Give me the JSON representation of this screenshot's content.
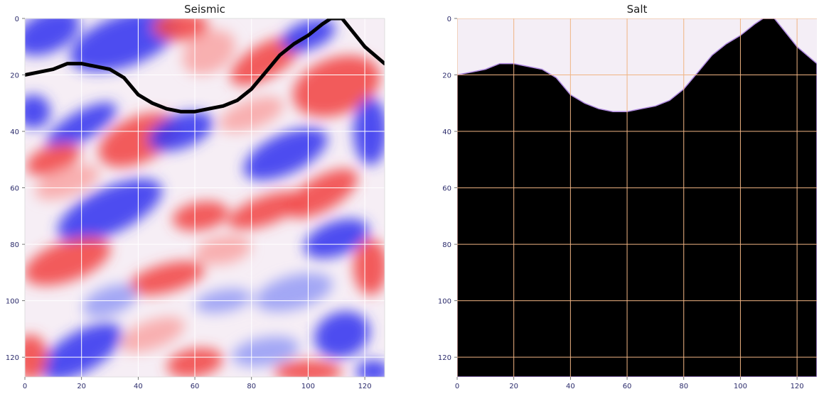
{
  "chart_data": [
    {
      "type": "heatmap",
      "title": "Seismic",
      "colormap": "seismic (blue-white-red)",
      "xlim": [
        0,
        127
      ],
      "ylim": [
        127,
        0
      ],
      "x_ticks": [
        "0",
        "20",
        "40",
        "60",
        "80",
        "100",
        "120"
      ],
      "y_ticks": [
        "0",
        "20",
        "40",
        "60",
        "80",
        "100",
        "120"
      ],
      "grid": true,
      "grid_color": "#ffffff",
      "overlay_line": {
        "color": "#000000",
        "x": [
          0,
          5,
          10,
          15,
          20,
          25,
          30,
          35,
          40,
          45,
          50,
          55,
          60,
          65,
          70,
          75,
          80,
          85,
          90,
          95,
          100,
          105,
          108,
          112,
          116,
          120,
          127
        ],
        "y": [
          20,
          19,
          18,
          16,
          16,
          17,
          18,
          21,
          27,
          30,
          32,
          33,
          33,
          32,
          31,
          29,
          25,
          19,
          13,
          9,
          6,
          2,
          0,
          0,
          5,
          10,
          16
        ]
      }
    },
    {
      "type": "heatmap",
      "title": "Salt",
      "colormap": "binary mask (lavender / black)",
      "mask_colors": {
        "salt": "#000000",
        "background": "#f4eef6",
        "edge": "#b08ae0"
      },
      "xlim": [
        0,
        127
      ],
      "ylim": [
        127,
        0
      ],
      "x_ticks": [
        "0",
        "20",
        "40",
        "60",
        "80",
        "100",
        "120"
      ],
      "y_ticks": [
        "0",
        "20",
        "40",
        "60",
        "80",
        "100",
        "120"
      ],
      "grid": true,
      "grid_color": "#f0b483",
      "boundary": {
        "x": [
          0,
          5,
          10,
          15,
          20,
          25,
          30,
          35,
          40,
          45,
          50,
          55,
          60,
          65,
          70,
          75,
          80,
          85,
          90,
          95,
          100,
          105,
          108,
          112,
          116,
          120,
          127
        ],
        "y": [
          20,
          19,
          18,
          16,
          16,
          17,
          18,
          21,
          27,
          30,
          32,
          33,
          33,
          32,
          31,
          29,
          25,
          19,
          13,
          9,
          6,
          2,
          0,
          0,
          5,
          10,
          16
        ]
      }
    }
  ]
}
